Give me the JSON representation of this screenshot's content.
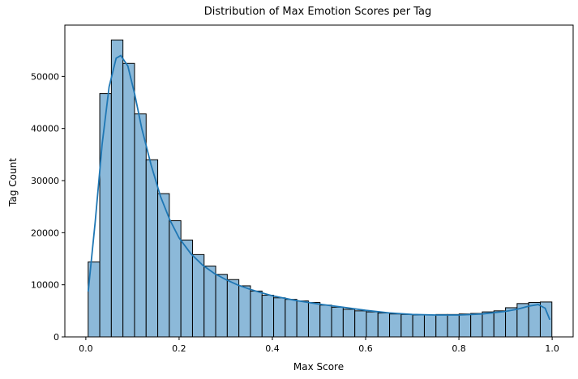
{
  "chart_data": {
    "type": "bar",
    "title": "Distribution of Max Emotion Scores per Tag",
    "xlabel": "Max Score",
    "ylabel": "Tag Count",
    "bin_start": 0.005,
    "bin_width": 0.02486,
    "values": [
      14400,
      46700,
      57000,
      52500,
      42800,
      34000,
      27500,
      22300,
      18600,
      15800,
      13600,
      12000,
      11000,
      9800,
      8800,
      8000,
      7500,
      7200,
      6900,
      6600,
      6100,
      5700,
      5300,
      5000,
      4800,
      4600,
      4400,
      4300,
      4200,
      4200,
      4300,
      4300,
      4400,
      4500,
      4800,
      5000,
      5600,
      6400,
      6600,
      6700
    ],
    "kde": {
      "x": [
        0.005,
        0.02,
        0.035,
        0.05,
        0.065,
        0.075,
        0.09,
        0.105,
        0.12,
        0.14,
        0.16,
        0.18,
        0.2,
        0.225,
        0.25,
        0.275,
        0.3,
        0.325,
        0.35,
        0.375,
        0.4,
        0.45,
        0.5,
        0.55,
        0.6,
        0.65,
        0.7,
        0.75,
        0.8,
        0.85,
        0.9,
        0.925,
        0.95,
        0.97,
        0.985,
        0.995
      ],
      "y": [
        8700,
        22000,
        37000,
        48000,
        53500,
        54000,
        52000,
        46500,
        40000,
        33000,
        27000,
        22500,
        19000,
        16000,
        13800,
        12200,
        11000,
        10000,
        9200,
        8500,
        7900,
        7000,
        6300,
        5700,
        5100,
        4600,
        4300,
        4200,
        4200,
        4400,
        4900,
        5300,
        5900,
        6200,
        5500,
        3300
      ]
    },
    "xlim": [
      -0.045,
      1.045
    ],
    "ylim": [
      0,
      59850
    ],
    "xticks": [
      0.0,
      0.2,
      0.4,
      0.6,
      0.8,
      1.0
    ],
    "xtick_labels": [
      "0.0",
      "0.2",
      "0.4",
      "0.6",
      "0.8",
      "1.0"
    ],
    "yticks": [
      0,
      10000,
      20000,
      30000,
      40000,
      50000
    ],
    "ytick_labels": [
      "0",
      "10000",
      "20000",
      "30000",
      "40000",
      "50000"
    ],
    "bar_color": "#8cb9d9",
    "bar_edge_color": "#000000",
    "line_color": "#1f77b4",
    "grid": false,
    "legend": false
  }
}
